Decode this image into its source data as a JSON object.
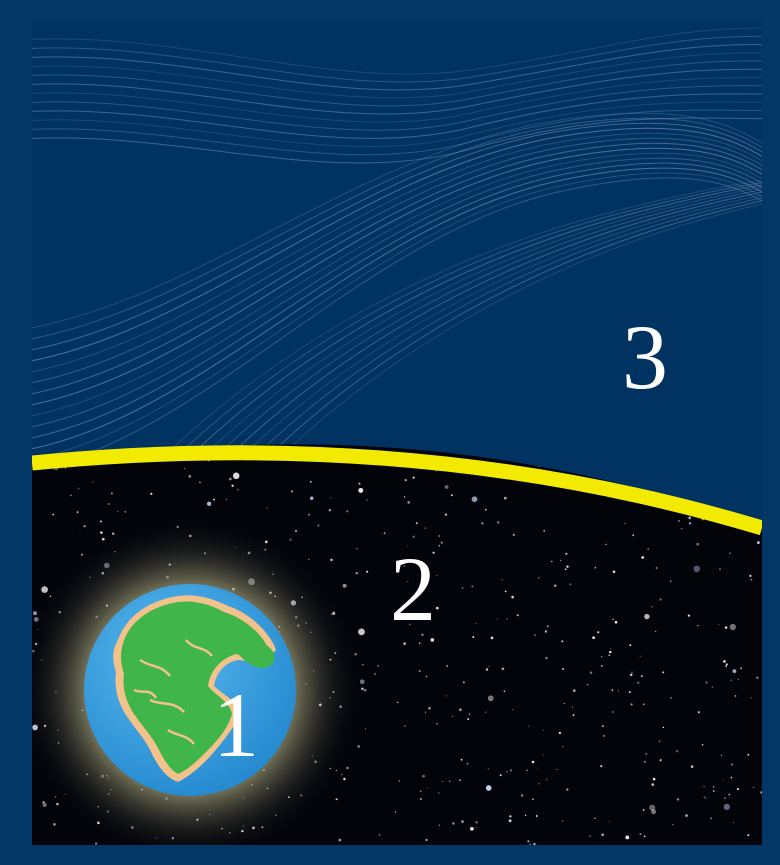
{
  "labels": {
    "earth": "1",
    "space": "2",
    "outer_region": "3"
  },
  "colors": {
    "frame": "#023766",
    "upper_region": "#003361",
    "wave_lines": "#8ea3c6",
    "boundary_curve": "#f2ea00",
    "space": "#02040a",
    "ocean": "#2f9fe0",
    "continents": "#3fb54a",
    "coast": "#f2c28a",
    "glow": "#d8d4a0"
  },
  "icons": {
    "earth": "pangaea-earth-icon",
    "stars": "star-field"
  }
}
